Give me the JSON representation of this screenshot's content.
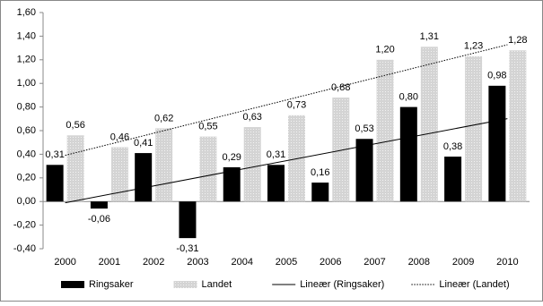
{
  "chart_data": {
    "type": "bar",
    "categories": [
      "2000",
      "2001",
      "2002",
      "2003",
      "2004",
      "2005",
      "2006",
      "2007",
      "2008",
      "2009",
      "2010"
    ],
    "series": [
      {
        "name": "Ringsaker",
        "color": "#000000",
        "values": [
          0.31,
          -0.06,
          0.41,
          -0.31,
          0.29,
          0.31,
          0.16,
          0.53,
          0.8,
          0.38,
          0.98
        ],
        "value_labels": [
          "0,31",
          "-0,06",
          "0,41",
          "-0,31",
          "0,29",
          "0,31",
          "0,16",
          "0,53",
          "0,80",
          "0,38",
          "0,98"
        ]
      },
      {
        "name": "Landet",
        "color": "#d4d4d4",
        "values": [
          0.56,
          0.46,
          0.62,
          0.55,
          0.63,
          0.73,
          0.88,
          1.2,
          1.31,
          1.23,
          1.28
        ],
        "value_labels": [
          "0,56",
          "0,46",
          "0,62",
          "0,55",
          "0,63",
          "0,73",
          "0,88",
          "1,20",
          "1,31",
          "1,23",
          "1,28"
        ]
      }
    ],
    "trendlines": [
      {
        "name": "Lineær (Ringsaker)",
        "series": 0,
        "style": "solid"
      },
      {
        "name": "Lineær (Landet)",
        "series": 1,
        "style": "dotted"
      }
    ],
    "ylim": [
      -0.4,
      1.6
    ],
    "yticks": [
      {
        "value": -0.4,
        "label": "-0,40"
      },
      {
        "value": -0.2,
        "label": "-0,20"
      },
      {
        "value": 0,
        "label": "0,00"
      },
      {
        "value": 0.2,
        "label": "0,20"
      },
      {
        "value": 0.4,
        "label": "0,40"
      },
      {
        "value": 0.6,
        "label": "0,60"
      },
      {
        "value": 0.8,
        "label": "0,80"
      },
      {
        "value": 1.0,
        "label": "1,00"
      },
      {
        "value": 1.2,
        "label": "1,20"
      },
      {
        "value": 1.4,
        "label": "1,40"
      },
      {
        "value": 1.6,
        "label": "1,60"
      }
    ],
    "grid": false,
    "legend": "bottom"
  }
}
